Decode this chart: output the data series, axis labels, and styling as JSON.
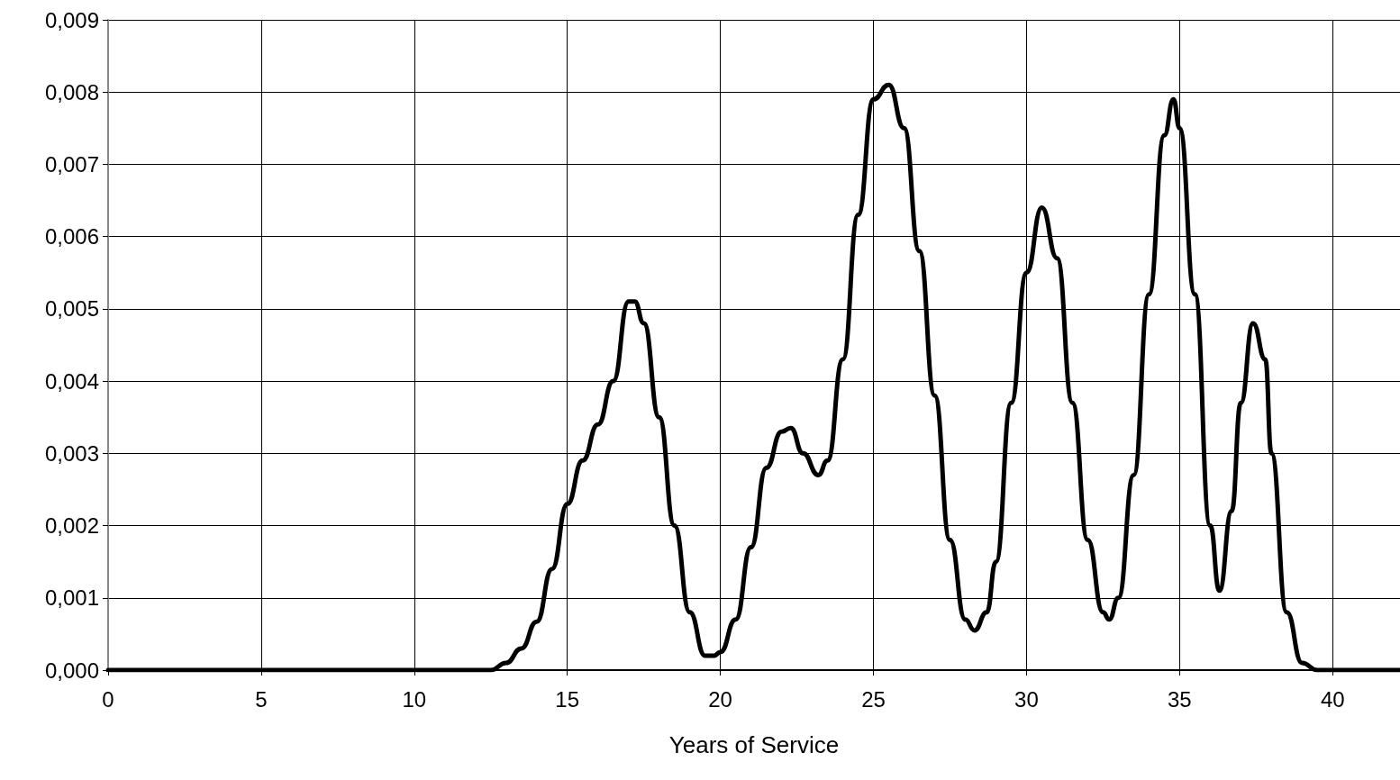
{
  "chart_data": {
    "type": "line",
    "xlabel": "Years of Service",
    "x": [
      0,
      2,
      4,
      6,
      8,
      10,
      12,
      12.5,
      13,
      13.5,
      14,
      14.5,
      15,
      15.5,
      16,
      16.5,
      17,
      17.2,
      17.5,
      18,
      18.5,
      19,
      19.5,
      19.8,
      20,
      20.5,
      21,
      21.5,
      22,
      22.3,
      22.7,
      23.2,
      23.5,
      24,
      24.5,
      25,
      25.5,
      26,
      26.5,
      27,
      27.5,
      28,
      28.3,
      28.7,
      29,
      29.5,
      30,
      30.5,
      31,
      31.5,
      32,
      32.5,
      32.7,
      33,
      33.5,
      34,
      34.5,
      34.8,
      35,
      35.5,
      36,
      36.3,
      36.7,
      37,
      37.4,
      37.8,
      38,
      38.5,
      39,
      39.5,
      41,
      42.2
    ],
    "series": [
      {
        "color": "#000000",
        "values": [
          0,
          0,
          0,
          0,
          0,
          0,
          0,
          0,
          0.0001,
          0.0003,
          0.00067,
          0.0014,
          0.0023,
          0.0029,
          0.0034,
          0.004,
          0.0051,
          0.0051,
          0.0048,
          0.0035,
          0.002,
          0.0008,
          0.0002,
          0.0002,
          0.00025,
          0.0007,
          0.0017,
          0.0028,
          0.0033,
          0.00335,
          0.003,
          0.0027,
          0.0029,
          0.0043,
          0.0063,
          0.0079,
          0.0081,
          0.0075,
          0.0058,
          0.0038,
          0.0018,
          0.0007,
          0.00055,
          0.0008,
          0.0015,
          0.0037,
          0.0055,
          0.0064,
          0.0057,
          0.0037,
          0.0018,
          0.0008,
          0.0007,
          0.001,
          0.0027,
          0.0052,
          0.0074,
          0.0079,
          0.0075,
          0.0052,
          0.002,
          0.0011,
          0.0022,
          0.0037,
          0.0048,
          0.0043,
          0.003,
          0.0008,
          0.0001,
          0,
          0,
          0
        ]
      }
    ],
    "xlim": [
      0,
      42.2
    ],
    "xticks": [
      0,
      5,
      10,
      15,
      20,
      25,
      30,
      35,
      40
    ],
    "ylim": [
      0,
      0.009
    ],
    "yticks": [
      {
        "value": 0,
        "label": "0,000"
      },
      {
        "value": 0.001,
        "label": "0,001"
      },
      {
        "value": 0.002,
        "label": "0,002"
      },
      {
        "value": 0.003,
        "label": "0,003"
      },
      {
        "value": 0.004,
        "label": "0,004"
      },
      {
        "value": 0.005,
        "label": "0,005"
      },
      {
        "value": 0.006,
        "label": "0,006"
      },
      {
        "value": 0.007,
        "label": "0,007"
      },
      {
        "value": 0.008,
        "label": "0,008"
      },
      {
        "value": 0.009,
        "label": "0,009"
      }
    ],
    "grid": true,
    "marker": "none",
    "line_style": "solid"
  }
}
